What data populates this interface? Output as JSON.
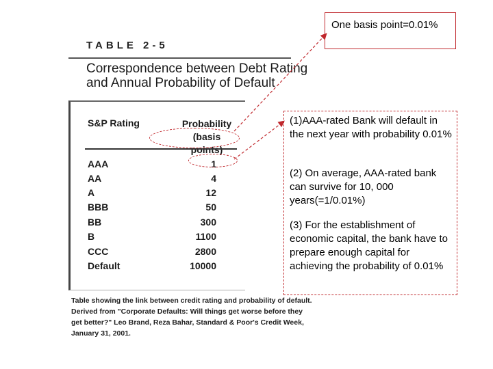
{
  "table": {
    "label": "TABLE 2-5",
    "title_line1": "Correspondence between Debt Rating",
    "title_line2": "and Annual Probability of Default",
    "col_rating": "S&P Rating",
    "col_prob_line1": "Probability",
    "col_prob_line2": "(basis points)",
    "rows": [
      {
        "rating": "AAA",
        "prob": "1"
      },
      {
        "rating": "AA",
        "prob": "4"
      },
      {
        "rating": "A",
        "prob": "12"
      },
      {
        "rating": "BBB",
        "prob": "50"
      },
      {
        "rating": "BB",
        "prob": "300"
      },
      {
        "rating": "B",
        "prob": "1100"
      },
      {
        "rating": "CCC",
        "prob": "2800"
      },
      {
        "rating": "Default",
        "prob": "10000"
      }
    ],
    "caption_line1": "Table showing the link between credit rating and probability of default.",
    "caption_line2": "Derived from \"Corporate Defaults: Will things get worse before they",
    "caption_line3": "get better?\" Leo Brand, Reza Bahar, Standard & Poor's Credit Week,",
    "caption_line4": "January 31, 2001."
  },
  "callouts": {
    "basis_point": "One basis point=0.01%",
    "note1": "(1)AAA-rated Bank will default in the next year with probability 0.01%",
    "note2": "(2) On average,  AAA-rated bank can survive for 10, 000 years(=1/0.01%)",
    "note3": "(3) For the establishment of economic capital, the bank have to prepare enough capital for achieving the probability of 0.01%"
  },
  "colors": {
    "annotation": "#c0282d",
    "text": "#111111"
  }
}
